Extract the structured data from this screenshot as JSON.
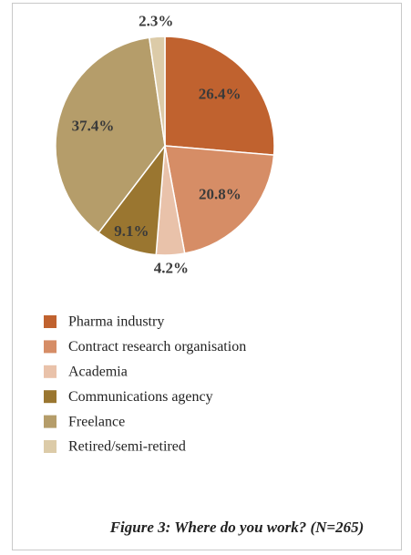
{
  "chart_data": {
    "type": "pie",
    "title": "Figure 3: Where do you work? (N=265)",
    "categories": [
      "Pharma industry",
      "Contract research organisation",
      "Academia",
      "Communications agency",
      "Freelance",
      "Retired/semi-retired"
    ],
    "values": [
      26.4,
      20.8,
      4.2,
      9.1,
      37.4,
      2.3
    ],
    "value_labels": [
      "26.4%",
      "20.8%",
      "4.2%",
      "9.1%",
      "37.4%",
      "2.3%"
    ],
    "colors": [
      "#c0622f",
      "#d68d66",
      "#e9c2aa",
      "#9a7630",
      "#b59d6a",
      "#dccba8"
    ],
    "legend": "bottom"
  }
}
